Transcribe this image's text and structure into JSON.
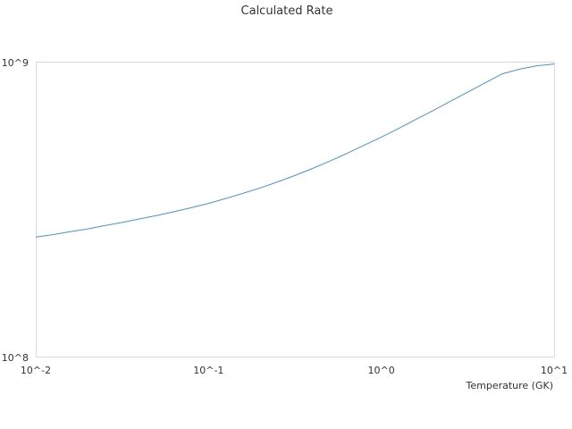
{
  "chart_data": {
    "type": "line",
    "title": "Calculated Rate",
    "xlabel": "Temperature (GK)",
    "ylabel": "",
    "xscale": "log",
    "yscale": "log",
    "xlim": [
      0.01,
      10
    ],
    "ylim": [
      100000000,
      1000000000
    ],
    "x_ticks": [
      "10^-2",
      "10^-1",
      "10^0",
      "10^1"
    ],
    "y_ticks": [
      "10^8",
      "10^9"
    ],
    "grid": false,
    "legend": "none",
    "line_color": "#4a90d9",
    "series": [
      {
        "x": [
          0.01,
          0.0126,
          0.0158,
          0.02,
          0.0251,
          0.0316,
          0.0398,
          0.0501,
          0.0631,
          0.0794,
          0.1,
          0.126,
          0.158,
          0.2,
          0.251,
          0.316,
          0.398,
          0.501,
          0.631,
          0.794,
          1.0,
          1.26,
          1.58,
          2.0,
          2.51,
          3.16,
          3.98,
          5.01,
          6.31,
          7.94,
          10.0
        ],
        "values": [
          256000000,
          261000000,
          267000000,
          273000000,
          280000000,
          287000000,
          295000000,
          303000000,
          312000000,
          322000000,
          333000000,
          346000000,
          360000000,
          376000000,
          394000000,
          414000000,
          437000000,
          463000000,
          492000000,
          524000000,
          559000000,
          598000000,
          641000000,
          688000000,
          739000000,
          794000000,
          853000000,
          916000000,
          950000000,
          975000000,
          989000000
        ]
      }
    ]
  }
}
